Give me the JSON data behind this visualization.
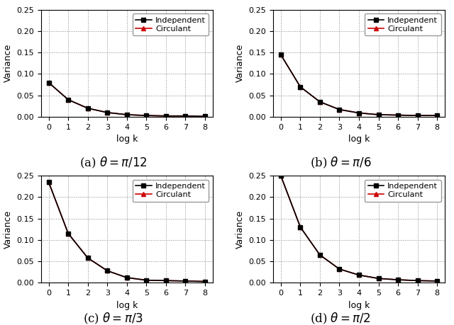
{
  "x": [
    0,
    1,
    2,
    3,
    4,
    5,
    6,
    7,
    8
  ],
  "subplots": [
    {
      "label": "(a) $\\theta = \\pi/12$",
      "independent": [
        0.08,
        0.04,
        0.02,
        0.01,
        0.005,
        0.003,
        0.002,
        0.002,
        0.001
      ],
      "circulant": [
        0.08,
        0.04,
        0.02,
        0.01,
        0.005,
        0.003,
        0.002,
        0.002,
        0.001
      ]
    },
    {
      "label": "(b) $\\theta = \\pi/6$",
      "independent": [
        0.145,
        0.07,
        0.035,
        0.017,
        0.009,
        0.005,
        0.004,
        0.003,
        0.003
      ],
      "circulant": [
        0.145,
        0.07,
        0.035,
        0.017,
        0.009,
        0.005,
        0.004,
        0.003,
        0.003
      ]
    },
    {
      "label": "(c) $\\theta = \\pi/3$",
      "independent": [
        0.235,
        0.115,
        0.058,
        0.028,
        0.012,
        0.006,
        0.005,
        0.004,
        0.003
      ],
      "circulant": [
        0.235,
        0.115,
        0.058,
        0.028,
        0.012,
        0.006,
        0.005,
        0.004,
        0.003
      ]
    },
    {
      "label": "(d) $\\theta = \\pi/2$",
      "independent": [
        0.25,
        0.13,
        0.065,
        0.032,
        0.018,
        0.01,
        0.007,
        0.005,
        0.004
      ],
      "circulant": [
        0.25,
        0.13,
        0.065,
        0.032,
        0.018,
        0.01,
        0.007,
        0.005,
        0.004
      ]
    }
  ],
  "ylim": [
    0,
    0.25
  ],
  "yticks": [
    0,
    0.05,
    0.1,
    0.15,
    0.2,
    0.25
  ],
  "xticks": [
    0,
    1,
    2,
    3,
    4,
    5,
    6,
    7,
    8
  ],
  "xlabel": "log k",
  "ylabel": "Variance",
  "independent_color": "#000000",
  "circulant_color": "#cc0000",
  "background_color": "#ffffff",
  "grid_color": "#888888",
  "figure_bg": "#ffffff",
  "caption_fontsize": 12,
  "tick_fontsize": 8,
  "label_fontsize": 9,
  "legend_fontsize": 8
}
